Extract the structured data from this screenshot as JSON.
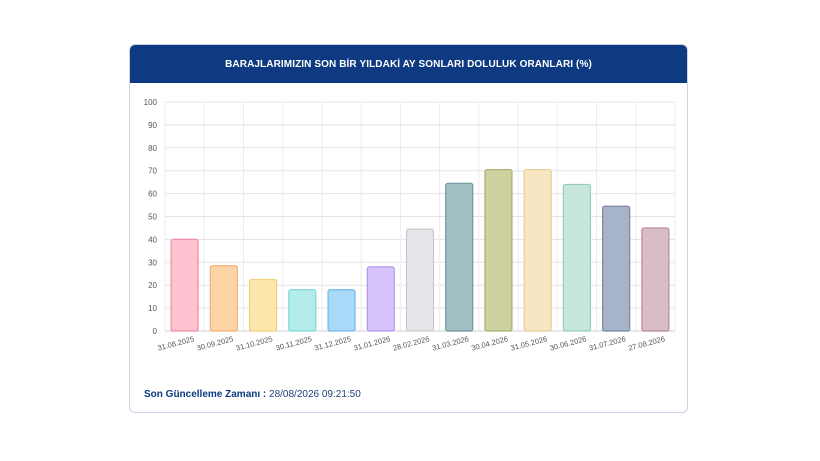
{
  "card": {
    "title": "BARAJLARIMIZIN SON BİR YILDAKİ AY SONLARI DOLULUK ORANLARI (%)"
  },
  "footer": {
    "label": "Son Güncelleme Zamanı : ",
    "value": "28/08/2026 09:21:50"
  },
  "chart_data": {
    "type": "bar",
    "title": "BARAJLARIMIZIN SON BİR YILDAKİ AY SONLARI DOLULUK ORANLARI (%)",
    "xlabel": "",
    "ylabel": "",
    "ylim": [
      0,
      100
    ],
    "yticks": [
      0,
      10,
      20,
      30,
      40,
      50,
      60,
      70,
      80,
      90,
      100
    ],
    "grid": true,
    "categories": [
      "31.08.2025",
      "30.09.2025",
      "31.10.2025",
      "30.11.2025",
      "31.12.2025",
      "31.01.2026",
      "28.02.2026",
      "31.03.2026",
      "30.04.2026",
      "31.05.2026",
      "30.06.2026",
      "31.07.2026",
      "27.08.2026"
    ],
    "values": [
      40,
      28.5,
      22.5,
      18,
      18,
      28,
      44.5,
      64.5,
      70.5,
      70.5,
      64,
      54.5,
      45
    ],
    "colors": [
      {
        "fill": "#ffc2d1",
        "stroke": "#f48aa6"
      },
      {
        "fill": "#fdd3a8",
        "stroke": "#f3b07a"
      },
      {
        "fill": "#fde7ad",
        "stroke": "#f1d27a"
      },
      {
        "fill": "#b4ecec",
        "stroke": "#7fd6d6"
      },
      {
        "fill": "#a9d8f8",
        "stroke": "#72bbec"
      },
      {
        "fill": "#d6c3fb",
        "stroke": "#b396ef"
      },
      {
        "fill": "#e5e6ea",
        "stroke": "#c8c9ce"
      },
      {
        "fill": "#a3c0c4",
        "stroke": "#6f979d"
      },
      {
        "fill": "#ccd19e",
        "stroke": "#a9ae72"
      },
      {
        "fill": "#f7e6c1",
        "stroke": "#e6cf95"
      },
      {
        "fill": "#c7e7de",
        "stroke": "#95cdbd"
      },
      {
        "fill": "#a7b3c8",
        "stroke": "#7786a3"
      },
      {
        "fill": "#d9bcc4",
        "stroke": "#b58c98"
      }
    ]
  }
}
